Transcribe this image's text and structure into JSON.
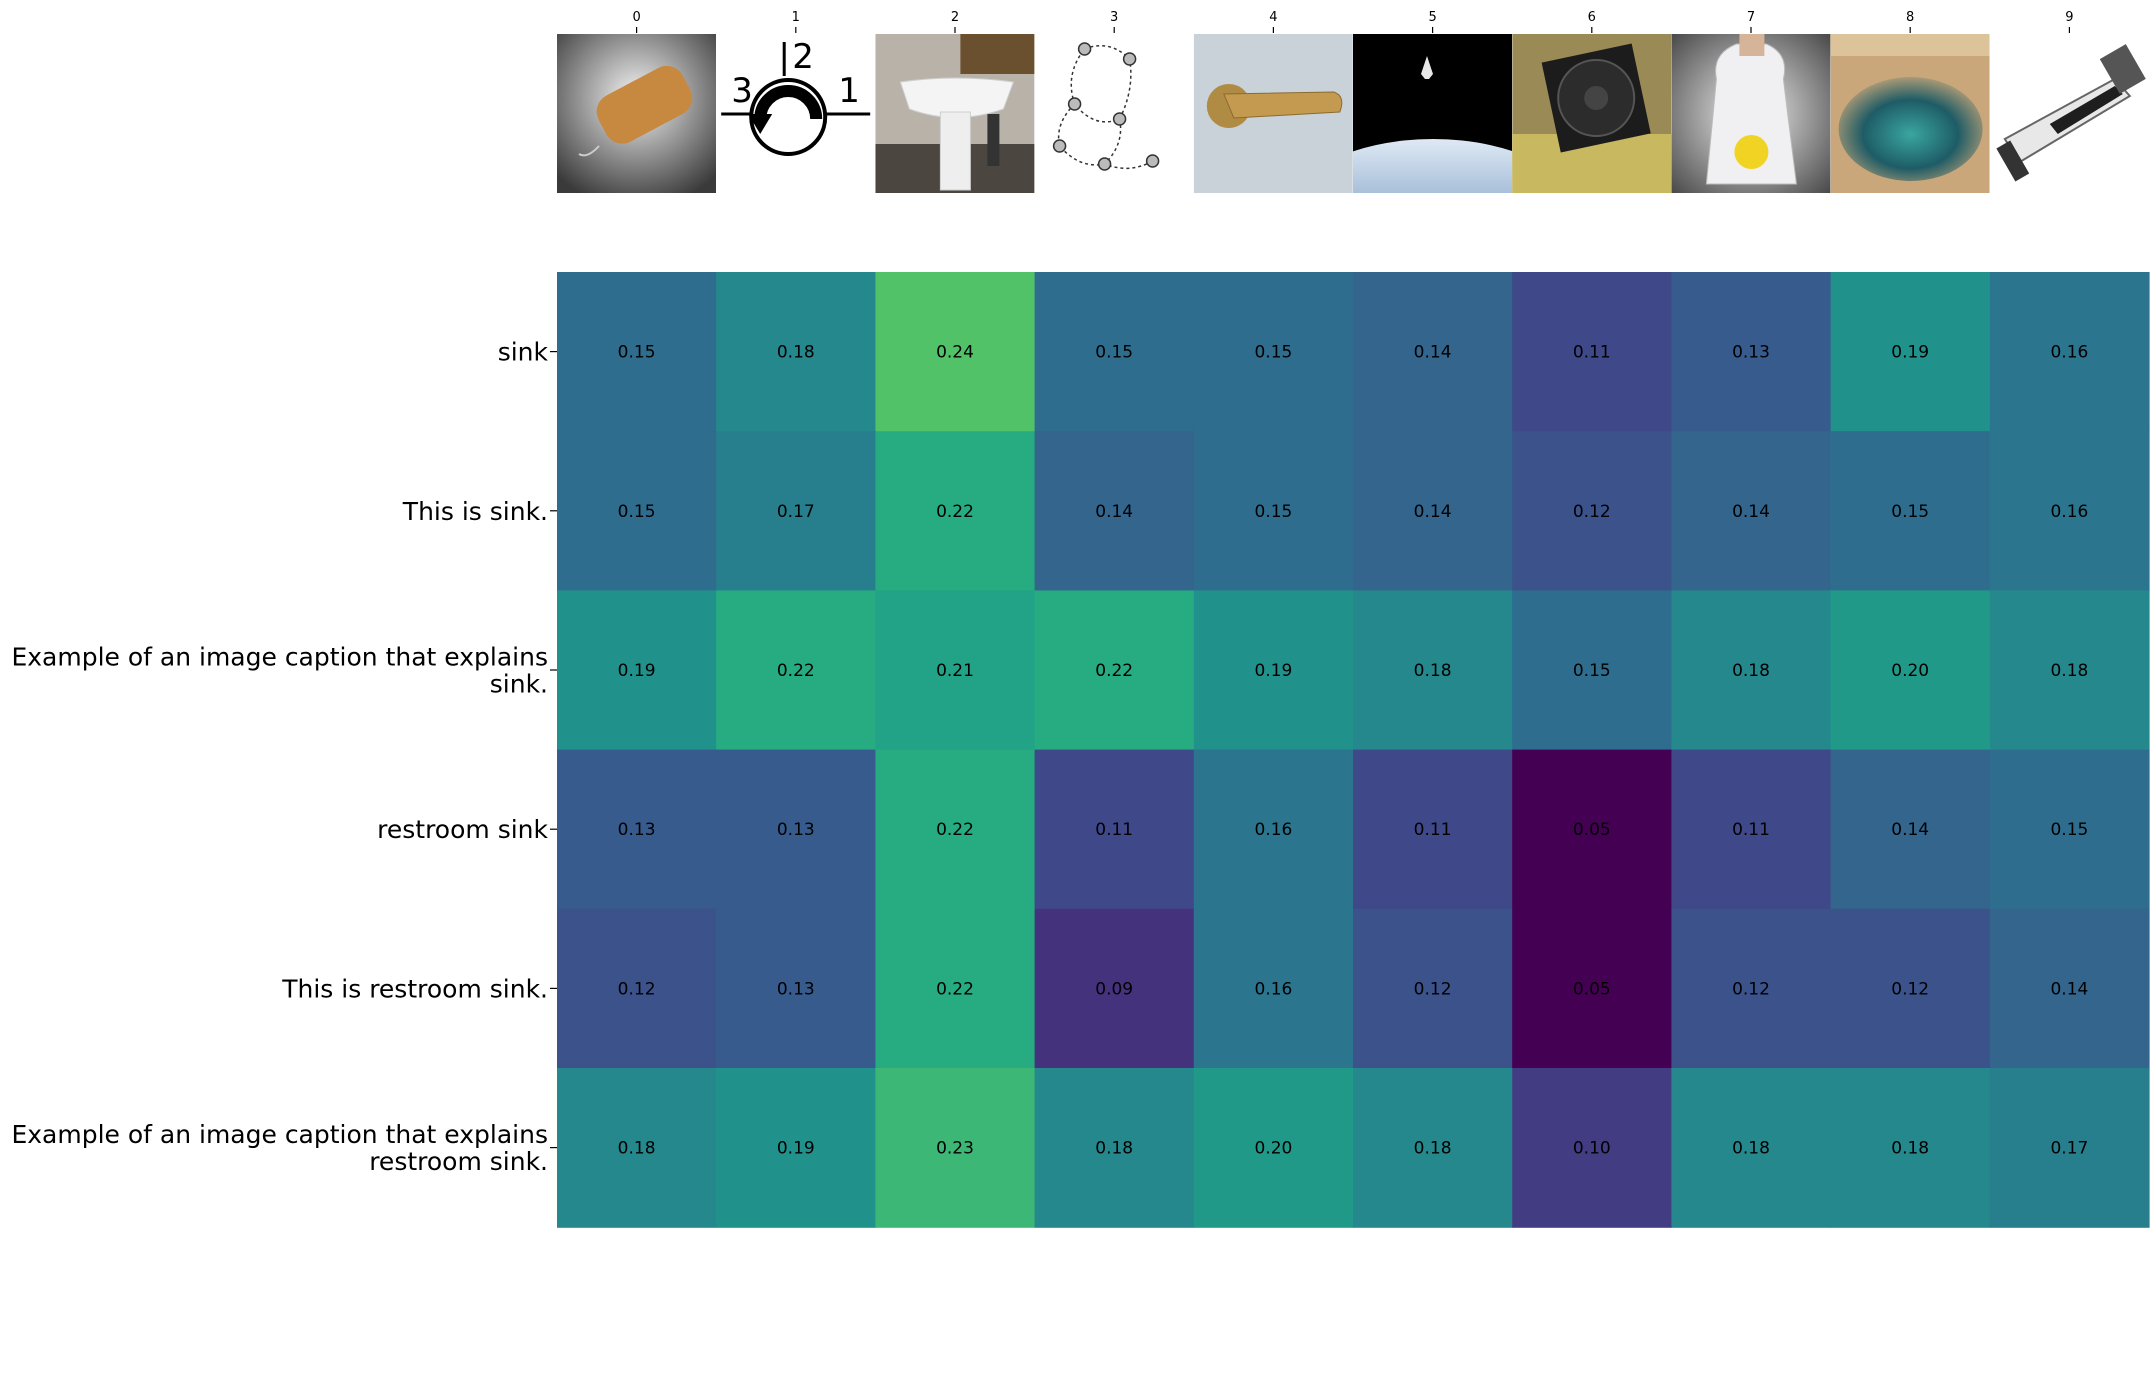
{
  "chart_data": {
    "type": "heatmap",
    "colormap": "viridis",
    "x_tick_labels": [
      "0",
      "1",
      "2",
      "3",
      "4",
      "5",
      "6",
      "7",
      "8",
      "9"
    ],
    "y_tick_labels": [
      [
        "sink"
      ],
      [
        "This is sink."
      ],
      [
        "Example of an image caption that explains",
        "sink."
      ],
      [
        "restroom sink"
      ],
      [
        "This is restroom sink."
      ],
      [
        "Example of an image caption that explains",
        "restroom sink."
      ]
    ],
    "values": [
      [
        0.15,
        0.18,
        0.24,
        0.15,
        0.15,
        0.14,
        0.11,
        0.13,
        0.19,
        0.16
      ],
      [
        0.15,
        0.17,
        0.22,
        0.14,
        0.15,
        0.14,
        0.12,
        0.14,
        0.15,
        0.16
      ],
      [
        0.19,
        0.22,
        0.21,
        0.22,
        0.19,
        0.18,
        0.15,
        0.18,
        0.2,
        0.18
      ],
      [
        0.13,
        0.13,
        0.22,
        0.11,
        0.16,
        0.11,
        0.05,
        0.11,
        0.14,
        0.15
      ],
      [
        0.12,
        0.13,
        0.22,
        0.09,
        0.16,
        0.12,
        0.05,
        0.12,
        0.12,
        0.14
      ],
      [
        0.18,
        0.19,
        0.23,
        0.18,
        0.2,
        0.18,
        0.1,
        0.18,
        0.18,
        0.17
      ]
    ],
    "value_format": "0.00",
    "image_thumbnails": [
      "soap-bar-photo",
      "rotation-direction-symbol",
      "pedestal-sink-photo",
      "state-transition-diagram",
      "door-handle-photo",
      "space-shuttle-over-earth-photo",
      "computer-cpu-fan-photo",
      "plastic-bag-photo",
      "sea-cave-photo",
      "razor-photo"
    ]
  }
}
